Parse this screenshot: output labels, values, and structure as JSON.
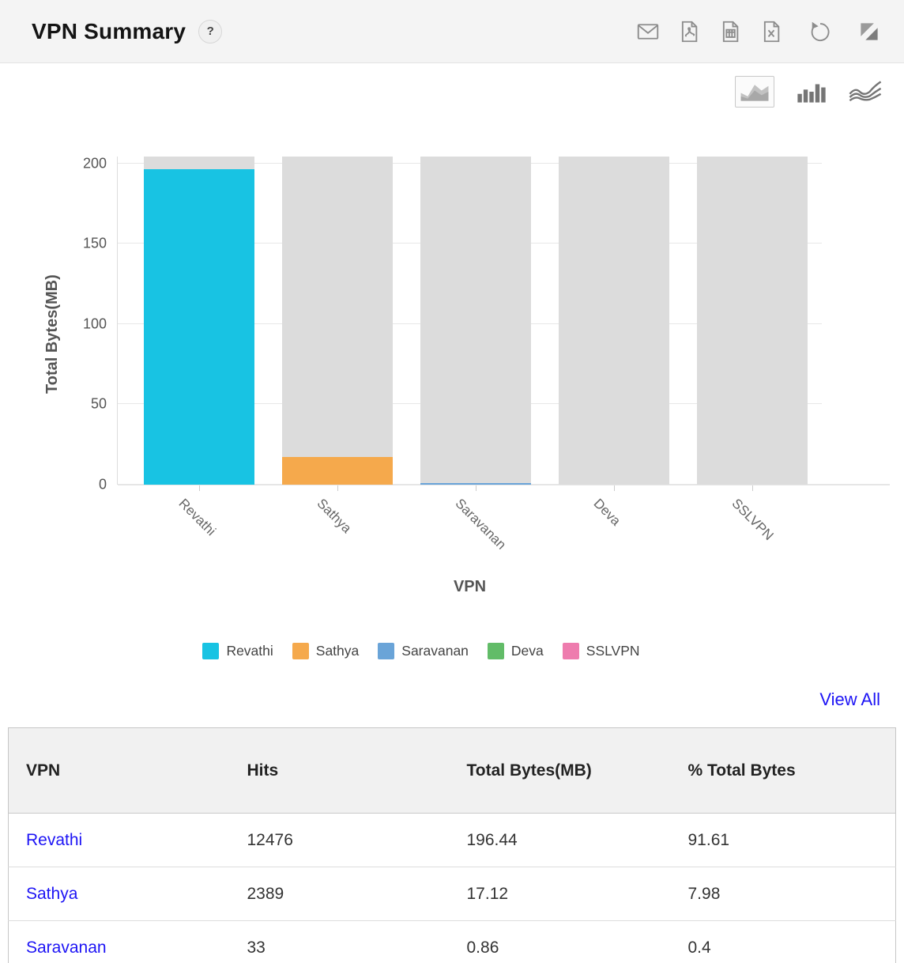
{
  "widget": {
    "title": "VPN Summary",
    "help_label": "?"
  },
  "header_actions": [
    {
      "id": "email",
      "label": "Email"
    },
    {
      "id": "pdf",
      "label": "Export PDF"
    },
    {
      "id": "csv",
      "label": "Export CSV"
    },
    {
      "id": "excel",
      "label": "Export Excel"
    },
    {
      "id": "refresh",
      "label": "Refresh"
    },
    {
      "id": "resize",
      "label": "Resize"
    }
  ],
  "chart_switcher": {
    "selected": "area",
    "options": [
      "area",
      "bar",
      "line"
    ]
  },
  "chart_data": {
    "type": "bar",
    "title": "VPN Summary",
    "categories": [
      "Revathi",
      "Sathya",
      "Saravanan",
      "Deva",
      "SSLVPN"
    ],
    "values": [
      196.44,
      17.12,
      0.86,
      0,
      0
    ],
    "series_colors": [
      "#18c3e3",
      "#f5a94c",
      "#6aa4d8",
      "#62bc68",
      "#ee7cae"
    ],
    "background_bar_color": "#dcdcdc",
    "ylabel": "Total Bytes(MB)",
    "xlabel": "VPN",
    "yticks": [
      0,
      50,
      100,
      150,
      200
    ],
    "ylim": [
      0,
      204.4
    ],
    "grid": "horizontal",
    "legend": {
      "position": "bottom",
      "entries": [
        "Revathi",
        "Sathya",
        "Saravanan",
        "Deva",
        "SSLVPN"
      ]
    }
  },
  "view_all_label": "View All",
  "table": {
    "columns": [
      "VPN",
      "Hits",
      "Total Bytes(MB)",
      "% Total Bytes"
    ],
    "rows": [
      [
        "Revathi",
        "12476",
        "196.44",
        "91.61"
      ],
      [
        "Sathya",
        "2389",
        "17.12",
        "7.98"
      ],
      [
        "Saravanan",
        "33",
        "0.86",
        "0.4"
      ]
    ]
  },
  "colors": {
    "link": "#1d14f5",
    "icon_gray": "#8c8c8c"
  }
}
